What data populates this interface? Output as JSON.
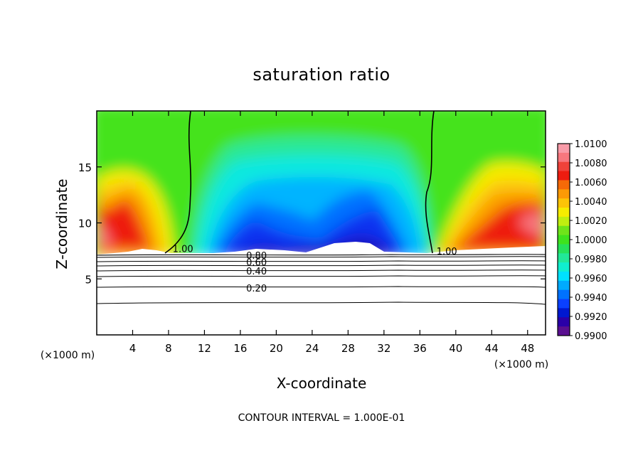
{
  "chart_data": {
    "type": "heatmap",
    "title": "saturation ratio",
    "xlabel": "X-coordinate",
    "ylabel": "Z-coordinate",
    "x_unit": "(×1000 m)",
    "x_unit_right": "(×1000 m)",
    "xlim": [
      0,
      50
    ],
    "ylim": [
      0,
      20
    ],
    "xticks": [
      4,
      8,
      12,
      16,
      20,
      24,
      28,
      32,
      36,
      40,
      44,
      48
    ],
    "yticks": [
      5,
      10,
      15
    ],
    "footer": "CONTOUR INTERVAL = 1.000E-01",
    "colorbar": {
      "labels": [
        "1.0100",
        "1.0080",
        "1.0060",
        "1.0040",
        "1.0020",
        "1.0000",
        "0.9980",
        "0.9960",
        "0.9940",
        "0.9920",
        "0.9900"
      ],
      "levels": [
        1.01,
        1.009,
        1.008,
        1.007,
        1.006,
        1.005,
        1.004,
        1.003,
        1.002,
        1.001,
        1.0,
        0.999,
        0.998,
        0.997,
        0.996,
        0.995,
        0.994,
        0.993,
        0.992,
        0.991,
        0.99
      ],
      "colors": [
        "#f89ba8",
        "#f7777e",
        "#f0423a",
        "#ee1c10",
        "#f56a08",
        "#fb9a06",
        "#fcc407",
        "#f6ec00",
        "#c0ee10",
        "#6fe41a",
        "#3ee31e",
        "#26e25a",
        "#22e898",
        "#10eecf",
        "#00e1ff",
        "#00aaff",
        "#0072ff",
        "#0a40ff",
        "#0018d0",
        "#2a00a8",
        "#5a0f90"
      ]
    },
    "contours": [
      {
        "label": "1.00",
        "x": 9.6,
        "z": 7.7
      },
      {
        "label": "1.00",
        "x": 39.0,
        "z": 7.5
      },
      {
        "label": "0.80",
        "x": 17.8,
        "z": 7.1
      },
      {
        "label": "0.60",
        "x": 17.8,
        "z": 6.5
      },
      {
        "label": "0.40",
        "x": 17.8,
        "z": 5.7
      },
      {
        "label": "0.20",
        "x": 17.8,
        "z": 4.2
      }
    ]
  }
}
